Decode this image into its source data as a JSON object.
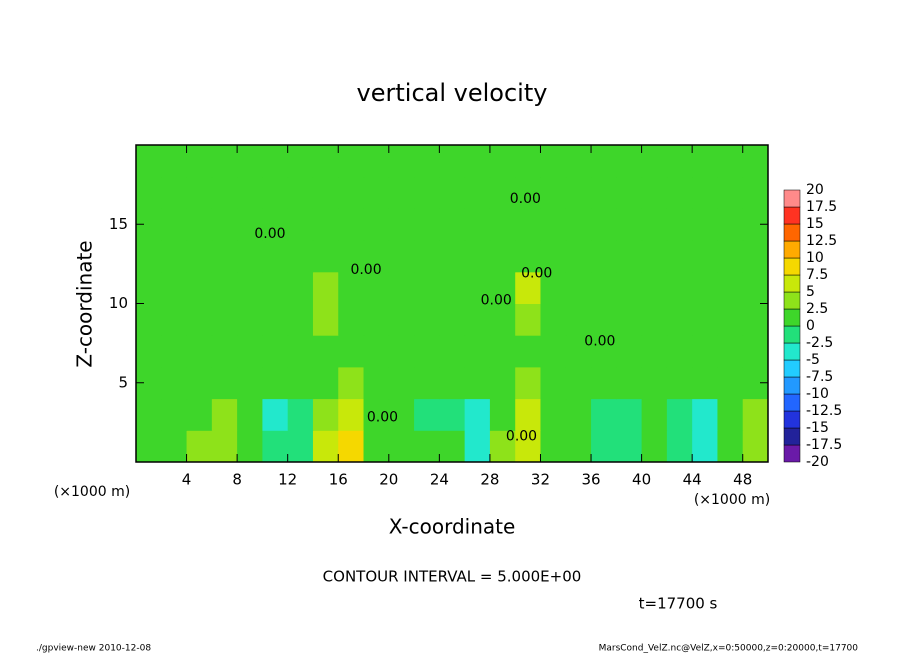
{
  "chart_data": {
    "type": "heatmap",
    "title": "vertical velocity",
    "xlabel": "X-coordinate",
    "ylabel": "Z-coordinate",
    "x_unit": "(×1000 m)",
    "y_unit": "(×1000 m)",
    "xlim": [
      0,
      50
    ],
    "ylim": [
      0,
      20
    ],
    "xticks": [
      4,
      8,
      12,
      16,
      20,
      24,
      28,
      32,
      36,
      40,
      44,
      48
    ],
    "yticks": [
      5,
      10,
      15
    ],
    "x": [
      1,
      3,
      5,
      7,
      9,
      11,
      13,
      15,
      17,
      19,
      21,
      23,
      25,
      27,
      29,
      31,
      33,
      35,
      37,
      39,
      41,
      43,
      45,
      47,
      49
    ],
    "y": [
      1,
      3,
      5,
      7,
      9,
      11,
      13,
      15,
      17,
      19
    ],
    "z": [
      [
        2,
        1.5,
        3,
        4,
        1,
        -2,
        -1,
        5,
        8,
        2,
        1,
        0,
        0,
        -4,
        3,
        6,
        1,
        0,
        -1,
        -1,
        0,
        -1,
        -3,
        1,
        4
      ],
      [
        1,
        1,
        2,
        4,
        1,
        -3,
        -1,
        4,
        7,
        1,
        0,
        -1,
        -1,
        -5,
        2,
        5,
        1,
        0,
        -1,
        -1,
        0,
        -1,
        -3,
        1,
        3
      ],
      [
        1,
        1,
        1,
        2,
        1,
        0,
        0,
        2,
        3,
        1,
        1,
        0,
        0,
        0,
        2,
        3,
        1,
        1,
        0,
        0,
        1,
        0,
        1,
        1,
        2
      ],
      [
        1,
        1,
        1,
        1,
        1,
        1,
        1,
        2,
        2,
        1,
        1,
        1,
        1,
        1,
        2,
        2,
        1,
        1,
        1,
        1,
        1,
        1,
        1,
        1,
        1
      ],
      [
        1,
        1,
        1,
        1,
        1,
        1,
        1,
        3,
        2,
        1,
        1,
        1,
        1,
        1,
        2,
        3,
        1,
        1,
        1,
        1,
        1,
        1,
        1,
        1,
        1
      ],
      [
        1,
        1,
        1,
        1,
        1,
        1,
        1,
        3,
        1,
        1,
        1,
        1,
        1,
        1,
        1,
        5,
        1,
        1,
        1,
        1,
        1,
        1,
        1,
        1,
        1
      ],
      [
        1,
        1,
        1,
        1,
        1,
        1,
        1,
        2,
        1,
        1,
        1,
        1,
        1,
        1,
        1,
        2,
        1,
        1,
        1,
        1,
        1,
        1,
        1,
        1,
        1
      ],
      [
        1,
        1,
        1,
        1,
        1,
        1,
        1,
        1,
        1,
        1,
        1,
        1,
        1,
        1,
        1,
        1,
        1,
        1,
        1,
        1,
        1,
        1,
        1,
        1,
        1
      ],
      [
        1,
        1,
        1,
        1,
        1,
        1,
        1,
        1,
        1,
        1,
        1,
        1,
        1,
        1,
        1,
        2,
        1,
        1,
        1,
        1,
        1,
        1,
        1,
        1,
        1
      ],
      [
        1,
        1,
        1,
        1,
        1,
        1,
        1,
        1,
        1,
        1,
        1,
        1,
        1,
        1,
        1,
        1,
        1,
        1,
        1,
        1,
        1,
        1,
        1,
        1,
        1
      ]
    ],
    "colorbar": {
      "levels": [
        -20,
        -17.5,
        -15,
        -12.5,
        -10,
        -7.5,
        -5,
        -2.5,
        0,
        2.5,
        5,
        7.5,
        10,
        12.5,
        15,
        17.5,
        20
      ],
      "colors": [
        "#6a1aa8",
        "#22229a",
        "#2233dd",
        "#2266ff",
        "#2299ff",
        "#22ccff",
        "#22e8cc",
        "#22e07a",
        "#3ed62a",
        "#8ee21a",
        "#c8e80a",
        "#f5d800",
        "#ffaa00",
        "#ff6600",
        "#ff3322",
        "#ff8a8a"
      ]
    },
    "contour_labels": [
      {
        "x": 10.6,
        "y": 14.4,
        "label": "0.00"
      },
      {
        "x": 18.2,
        "y": 12.1,
        "label": "0.00"
      },
      {
        "x": 28.5,
        "y": 10.2,
        "label": "0.00"
      },
      {
        "x": 30.8,
        "y": 16.6,
        "label": "0.00"
      },
      {
        "x": 31.7,
        "y": 11.9,
        "label": "0.00"
      },
      {
        "x": 36.7,
        "y": 7.6,
        "label": "0.00"
      },
      {
        "x": 19.5,
        "y": 2.8,
        "label": "0.00"
      },
      {
        "x": 30.5,
        "y": 1.6,
        "label": "0.00"
      }
    ],
    "contour_interval": "CONTOUR INTERVAL = 5.000E+00",
    "time_label": "t=17700 s",
    "footer_left": "./gpview-new  2010-12-08",
    "footer_right": "MarsCond_VelZ.nc@VelZ,x=0:50000,z=0:20000,t=17700"
  }
}
